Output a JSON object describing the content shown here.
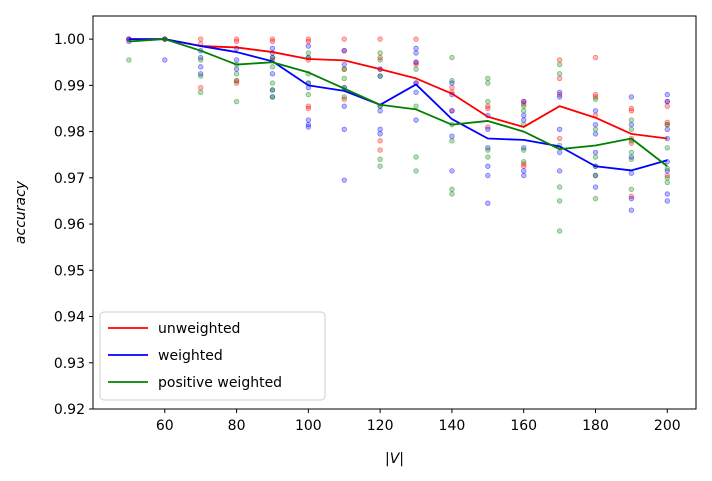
{
  "chart_data": {
    "type": "line",
    "xlabel": "|V|",
    "ylabel": "accuracy",
    "xlim": [
      40,
      208
    ],
    "ylim": [
      0.92,
      1.005
    ],
    "xticks": [
      60,
      80,
      100,
      120,
      140,
      160,
      180,
      200
    ],
    "yticks": [
      0.92,
      0.93,
      0.94,
      0.95,
      0.96,
      0.97,
      0.98,
      0.99,
      1.0
    ],
    "ytick_labels": [
      "0.92",
      "0.93",
      "0.94",
      "0.95",
      "0.96",
      "0.97",
      "0.98",
      "0.99",
      "1.00"
    ],
    "grid": false,
    "legend_position": "lower-left",
    "x": [
      50,
      60,
      70,
      80,
      90,
      100,
      110,
      120,
      130,
      140,
      150,
      160,
      170,
      180,
      190,
      200
    ],
    "series": [
      {
        "name": "unweighted",
        "color": "#ff0000",
        "values": [
          1.0,
          1.0,
          0.9985,
          0.9982,
          0.9972,
          0.9957,
          0.9954,
          0.9935,
          0.9915,
          0.9882,
          0.9832,
          0.981,
          0.9855,
          0.983,
          0.9795,
          0.9785
        ],
        "scatter": [
          [
            50,
            1.0
          ],
          [
            50,
            1.0
          ],
          [
            60,
            1.0
          ],
          [
            60,
            1.0
          ],
          [
            70,
            1.0
          ],
          [
            70,
            0.9895
          ],
          [
            70,
            0.999
          ],
          [
            80,
            1.0
          ],
          [
            80,
            0.9905
          ],
          [
            80,
            0.991
          ],
          [
            80,
            0.9995
          ],
          [
            90,
            1.0
          ],
          [
            90,
            0.9995
          ],
          [
            90,
            0.9955
          ],
          [
            100,
            1.0
          ],
          [
            100,
            0.9995
          ],
          [
            100,
            0.9955
          ],
          [
            100,
            0.9855
          ],
          [
            100,
            0.985
          ],
          [
            110,
            1.0
          ],
          [
            110,
            0.9975
          ],
          [
            110,
            0.9935
          ],
          [
            110,
            0.987
          ],
          [
            120,
            1.0
          ],
          [
            120,
            0.996
          ],
          [
            120,
            0.9935
          ],
          [
            120,
            0.976
          ],
          [
            120,
            0.978
          ],
          [
            130,
            1.0
          ],
          [
            130,
            0.995
          ],
          [
            130,
            0.9945
          ],
          [
            130,
            0.9905
          ],
          [
            140,
            0.9895
          ],
          [
            140,
            0.9885
          ],
          [
            140,
            0.9845
          ],
          [
            150,
            0.9855
          ],
          [
            150,
            0.985
          ],
          [
            150,
            0.981
          ],
          [
            160,
            0.9865
          ],
          [
            160,
            0.986
          ],
          [
            160,
            0.9725
          ],
          [
            160,
            0.973
          ],
          [
            170,
            0.9955
          ],
          [
            170,
            0.9915
          ],
          [
            170,
            0.988
          ],
          [
            170,
            0.9785
          ],
          [
            180,
            0.996
          ],
          [
            180,
            0.988
          ],
          [
            180,
            0.9875
          ],
          [
            180,
            0.9835
          ],
          [
            190,
            0.985
          ],
          [
            190,
            0.9845
          ],
          [
            190,
            0.9785
          ],
          [
            190,
            0.9775
          ],
          [
            190,
            0.966
          ],
          [
            200,
            0.9865
          ],
          [
            200,
            0.9855
          ],
          [
            200,
            0.982
          ],
          [
            200,
            0.9815
          ],
          [
            200,
            0.9705
          ]
        ]
      },
      {
        "name": "weighted",
        "color": "#0000ff",
        "values": [
          1.0,
          1.0,
          0.9985,
          0.9972,
          0.9952,
          0.99,
          0.9888,
          0.9858,
          0.9902,
          0.9827,
          0.9785,
          0.9782,
          0.9768,
          0.9725,
          0.9716,
          0.9738
        ],
        "scatter": [
          [
            50,
            1.0
          ],
          [
            50,
            0.9995
          ],
          [
            60,
            1.0
          ],
          [
            60,
            0.9955
          ],
          [
            70,
            0.9975
          ],
          [
            70,
            0.996
          ],
          [
            70,
            0.994
          ],
          [
            70,
            0.9925
          ],
          [
            80,
            0.998
          ],
          [
            80,
            0.9955
          ],
          [
            80,
            0.9935
          ],
          [
            90,
            0.998
          ],
          [
            90,
            0.997
          ],
          [
            90,
            0.996
          ],
          [
            90,
            0.9925
          ],
          [
            90,
            0.989
          ],
          [
            90,
            0.9875
          ],
          [
            100,
            0.9985
          ],
          [
            100,
            0.996
          ],
          [
            100,
            0.9905
          ],
          [
            100,
            0.9895
          ],
          [
            100,
            0.9825
          ],
          [
            100,
            0.9815
          ],
          [
            100,
            0.981
          ],
          [
            110,
            0.9975
          ],
          [
            110,
            0.9945
          ],
          [
            110,
            0.9895
          ],
          [
            110,
            0.9855
          ],
          [
            110,
            0.9805
          ],
          [
            110,
            0.9695
          ],
          [
            120,
            0.9935
          ],
          [
            120,
            0.992
          ],
          [
            120,
            0.9855
          ],
          [
            120,
            0.9845
          ],
          [
            120,
            0.9805
          ],
          [
            120,
            0.9795
          ],
          [
            130,
            0.998
          ],
          [
            130,
            0.997
          ],
          [
            130,
            0.995
          ],
          [
            130,
            0.9905
          ],
          [
            130,
            0.9885
          ],
          [
            130,
            0.9825
          ],
          [
            140,
            0.9905
          ],
          [
            140,
            0.988
          ],
          [
            140,
            0.9845
          ],
          [
            140,
            0.979
          ],
          [
            140,
            0.9715
          ],
          [
            150,
            0.9835
          ],
          [
            150,
            0.9805
          ],
          [
            150,
            0.9765
          ],
          [
            150,
            0.9725
          ],
          [
            150,
            0.9705
          ],
          [
            150,
            0.9645
          ],
          [
            160,
            0.9865
          ],
          [
            160,
            0.9835
          ],
          [
            160,
            0.9825
          ],
          [
            160,
            0.9765
          ],
          [
            160,
            0.9715
          ],
          [
            160,
            0.9705
          ],
          [
            170,
            0.9885
          ],
          [
            170,
            0.9875
          ],
          [
            170,
            0.9805
          ],
          [
            170,
            0.9755
          ],
          [
            170,
            0.9715
          ],
          [
            180,
            0.9845
          ],
          [
            180,
            0.9815
          ],
          [
            180,
            0.9795
          ],
          [
            180,
            0.9755
          ],
          [
            180,
            0.9725
          ],
          [
            180,
            0.9705
          ],
          [
            180,
            0.968
          ],
          [
            190,
            0.9875
          ],
          [
            190,
            0.9815
          ],
          [
            190,
            0.9745
          ],
          [
            190,
            0.971
          ],
          [
            190,
            0.9655
          ],
          [
            190,
            0.963
          ],
          [
            200,
            0.988
          ],
          [
            200,
            0.9865
          ],
          [
            200,
            0.9805
          ],
          [
            200,
            0.9785
          ],
          [
            200,
            0.9735
          ],
          [
            200,
            0.9715
          ],
          [
            200,
            0.9665
          ],
          [
            200,
            0.965
          ]
        ]
      },
      {
        "name": "positive weighted",
        "color": "#008000",
        "values": [
          0.9995,
          1.0,
          0.9975,
          0.9945,
          0.995,
          0.9928,
          0.9893,
          0.9858,
          0.9848,
          0.9815,
          0.9823,
          0.98,
          0.9762,
          0.977,
          0.9785,
          0.9725
        ],
        "scatter": [
          [
            50,
            0.9955
          ],
          [
            60,
            1.0
          ],
          [
            70,
            0.9955
          ],
          [
            70,
            0.992
          ],
          [
            70,
            0.9885
          ],
          [
            80,
            0.9945
          ],
          [
            80,
            0.9925
          ],
          [
            80,
            0.991
          ],
          [
            80,
            0.9865
          ],
          [
            90,
            0.996
          ],
          [
            90,
            0.994
          ],
          [
            90,
            0.9905
          ],
          [
            90,
            0.989
          ],
          [
            90,
            0.9875
          ],
          [
            100,
            0.997
          ],
          [
            100,
            0.996
          ],
          [
            100,
            0.9925
          ],
          [
            100,
            0.9905
          ],
          [
            100,
            0.988
          ],
          [
            110,
            0.9935
          ],
          [
            110,
            0.9915
          ],
          [
            110,
            0.9895
          ],
          [
            110,
            0.9875
          ],
          [
            120,
            0.997
          ],
          [
            120,
            0.9955
          ],
          [
            120,
            0.992
          ],
          [
            120,
            0.9855
          ],
          [
            120,
            0.974
          ],
          [
            120,
            0.9725
          ],
          [
            130,
            0.9935
          ],
          [
            130,
            0.9855
          ],
          [
            130,
            0.9745
          ],
          [
            130,
            0.9715
          ],
          [
            140,
            0.996
          ],
          [
            140,
            0.991
          ],
          [
            140,
            0.9815
          ],
          [
            140,
            0.978
          ],
          [
            140,
            0.9675
          ],
          [
            140,
            0.9665
          ],
          [
            150,
            0.9915
          ],
          [
            150,
            0.9905
          ],
          [
            150,
            0.9865
          ],
          [
            150,
            0.976
          ],
          [
            150,
            0.9745
          ],
          [
            160,
            0.9855
          ],
          [
            160,
            0.9845
          ],
          [
            160,
            0.9815
          ],
          [
            160,
            0.976
          ],
          [
            160,
            0.9735
          ],
          [
            170,
            0.9945
          ],
          [
            170,
            0.9925
          ],
          [
            170,
            0.977
          ],
          [
            170,
            0.968
          ],
          [
            170,
            0.965
          ],
          [
            170,
            0.9585
          ],
          [
            180,
            0.987
          ],
          [
            180,
            0.9805
          ],
          [
            180,
            0.9745
          ],
          [
            180,
            0.9725
          ],
          [
            180,
            0.9705
          ],
          [
            180,
            0.9655
          ],
          [
            190,
            0.9825
          ],
          [
            190,
            0.9805
          ],
          [
            190,
            0.978
          ],
          [
            190,
            0.9755
          ],
          [
            190,
            0.974
          ],
          [
            190,
            0.9675
          ],
          [
            200,
            0.9815
          ],
          [
            200,
            0.9765
          ],
          [
            200,
            0.972
          ],
          [
            200,
            0.97
          ],
          [
            200,
            0.969
          ]
        ]
      }
    ]
  }
}
